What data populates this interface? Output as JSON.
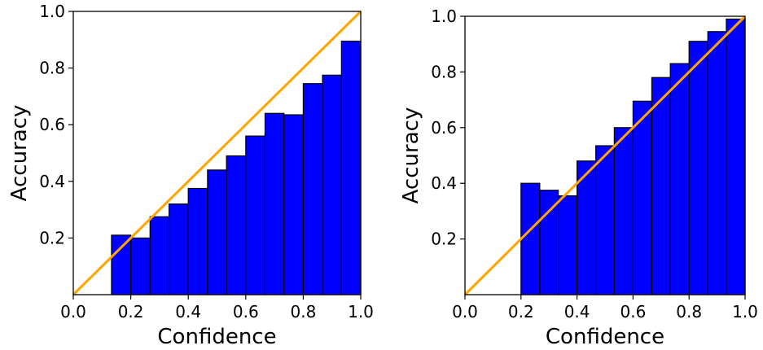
{
  "chart_data": [
    {
      "type": "bar",
      "xlabel": "Confidence",
      "ylabel": "Accuracy",
      "xlim": [
        0,
        1
      ],
      "ylim": [
        0,
        1
      ],
      "xticks": [
        "0.0",
        "0.2",
        "0.4",
        "0.6",
        "0.8",
        "1.0"
      ],
      "yticks": [
        "0.2",
        "0.4",
        "0.6",
        "0.8",
        "1.0"
      ],
      "bin_edges": [
        0.133,
        0.2,
        0.267,
        0.333,
        0.4,
        0.467,
        0.533,
        0.6,
        0.667,
        0.733,
        0.8,
        0.867,
        0.933,
        1.0
      ],
      "values": [
        0.21,
        0.2,
        0.275,
        0.32,
        0.375,
        0.44,
        0.49,
        0.56,
        0.64,
        0.635,
        0.745,
        0.775,
        0.895
      ],
      "bar_color": "#0000ff",
      "diagonal_color": "#ffa500",
      "grid": false
    },
    {
      "type": "bar",
      "xlabel": "Confidence",
      "ylabel": "Accuracy",
      "xlim": [
        0,
        1
      ],
      "ylim": [
        0,
        1
      ],
      "xticks": [
        "0.0",
        "0.2",
        "0.4",
        "0.6",
        "0.8",
        "1.0"
      ],
      "yticks": [
        "0.2",
        "0.4",
        "0.6",
        "0.8",
        "1.0"
      ],
      "bin_edges": [
        0.2,
        0.267,
        0.333,
        0.4,
        0.467,
        0.533,
        0.6,
        0.667,
        0.733,
        0.8,
        0.867,
        0.933,
        1.0
      ],
      "values": [
        0.4,
        0.375,
        0.355,
        0.48,
        0.535,
        0.6,
        0.695,
        0.78,
        0.83,
        0.91,
        0.945,
        0.99
      ],
      "bar_color": "#0000ff",
      "diagonal_color": "#ffa500",
      "grid": false
    }
  ]
}
